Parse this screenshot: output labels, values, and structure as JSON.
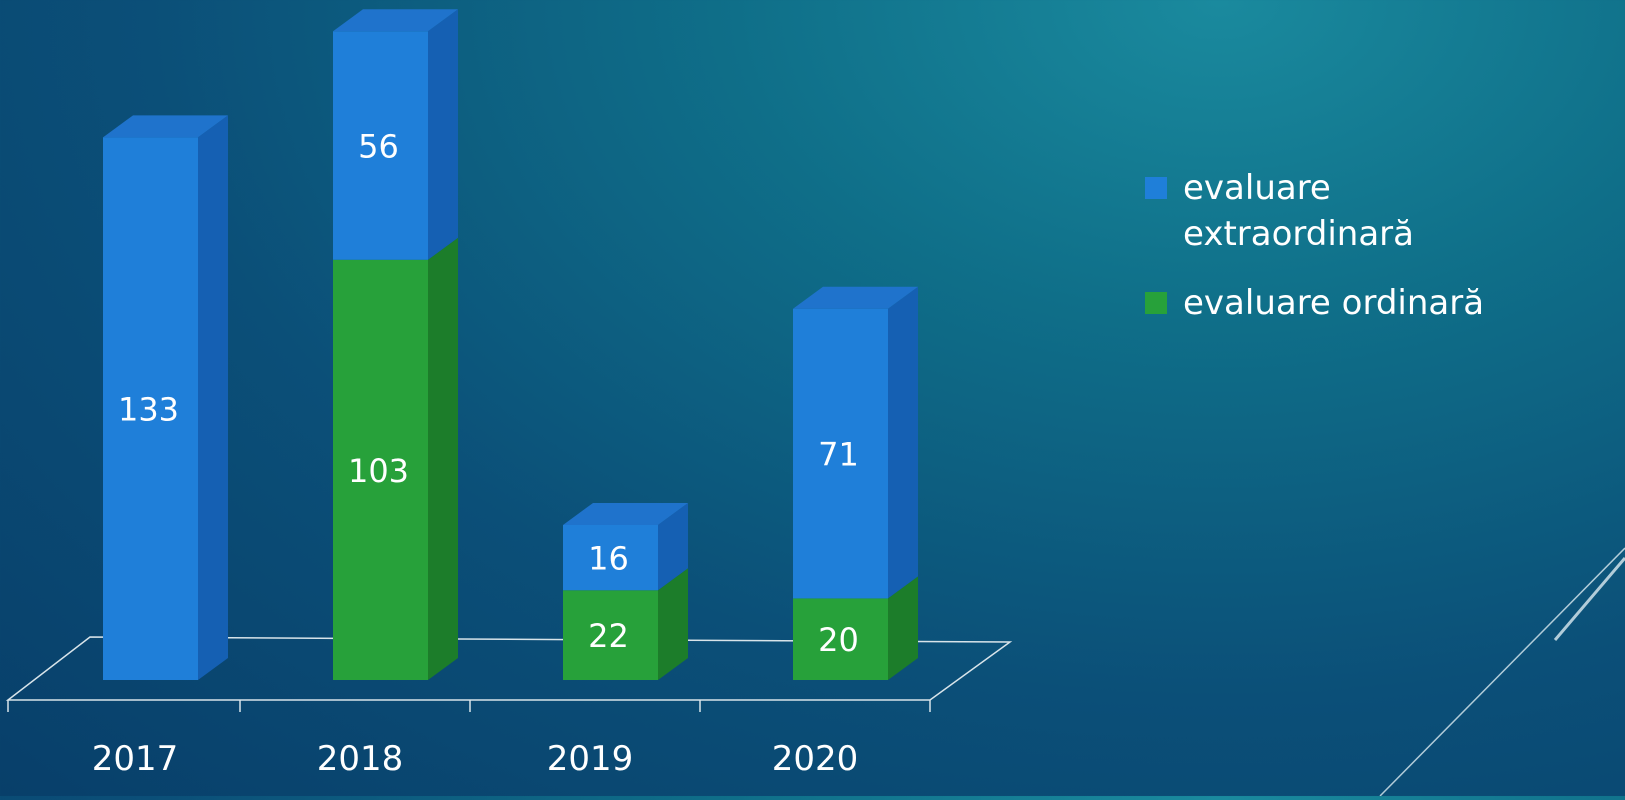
{
  "chart_data": {
    "type": "bar",
    "stacked": true,
    "three_d": true,
    "categories": [
      "2017",
      "2018",
      "2019",
      "2020"
    ],
    "series": [
      {
        "name": "evaluare ordinară",
        "values": [
          null,
          103,
          22,
          20
        ],
        "color": "#27a13a"
      },
      {
        "name": "evaluare extraordinară",
        "values": [
          133,
          56,
          16,
          71
        ],
        "color": "#1f7fd9"
      }
    ],
    "data_labels": true,
    "legend_position": "right",
    "legend": [
      {
        "label_lines": [
          "evaluare",
          "extraordinară"
        ],
        "color": "#1f7fd9"
      },
      {
        "label_lines": [
          "evaluare ordinară"
        ],
        "color": "#27a13a"
      }
    ],
    "ylim": [
      0,
      160
    ],
    "grid": false,
    "title": "",
    "xlabel": "",
    "ylabel": ""
  },
  "colors": {
    "background": "#0b4f78",
    "axis_line": "#d8e4ea",
    "label_text": "#ffffff",
    "blue_front": "#1f7fd9",
    "blue_side": "#1560b3",
    "blue_top": "#1f73cc",
    "green_front": "#27a13a",
    "green_side": "#1c7d2a",
    "green_top": "#2b9b3a"
  }
}
